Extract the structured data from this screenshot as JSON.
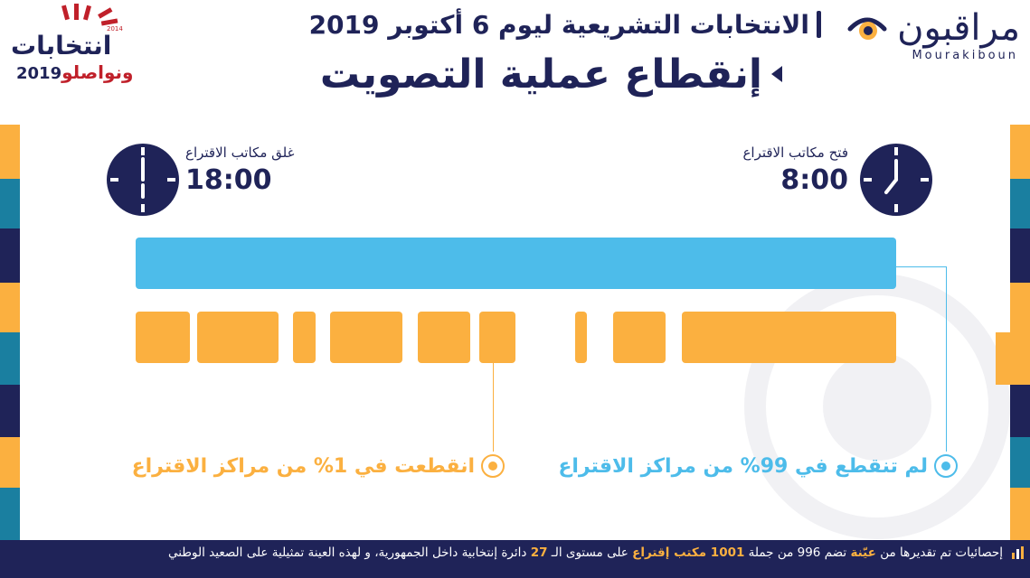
{
  "header": {
    "subtitle": "الانتخابات التشريعية ليوم 6 أكتوبر 2019",
    "title": "إنقطاع عملية التصويت"
  },
  "logo_right": {
    "name": "مراقبون",
    "latin": "Mourakiboun"
  },
  "logo_left": {
    "word": "انتخابات",
    "slogan": "ونواصلو",
    "year": "2019",
    "ribbon": "2014"
  },
  "opening": {
    "label": "فتح مكاتب الاقتراع",
    "time": "8:00"
  },
  "closing": {
    "label": "غلق مكاتب الاقتراع",
    "time": "18:00"
  },
  "legend": {
    "not_interrupted": "لم تنقطع في 99% من مراكز الاقتراع",
    "interrupted": "انقطعت في 1% من مراكز الاقتراع"
  },
  "footer": {
    "part1": "إحصائيات تم تقديرها من",
    "sample_word": "عيّنة",
    "part2": "تضم 996 من جملة",
    "stations": "1001 مكتب إقتراع",
    "part3": "على مستوى الـ",
    "districts_num": "27",
    "part4": "دائرة إنتخابية داخل الجمهورية، و لهذه العينة تمثيلية على الصعيد الوطني"
  },
  "colors": {
    "navy": "#1f2358",
    "blue": "#4dbcea",
    "orange": "#fbb040",
    "red": "#c0202a"
  },
  "icons": [
    "clock-icon",
    "eye-logo-icon",
    "chart-icon"
  ]
}
